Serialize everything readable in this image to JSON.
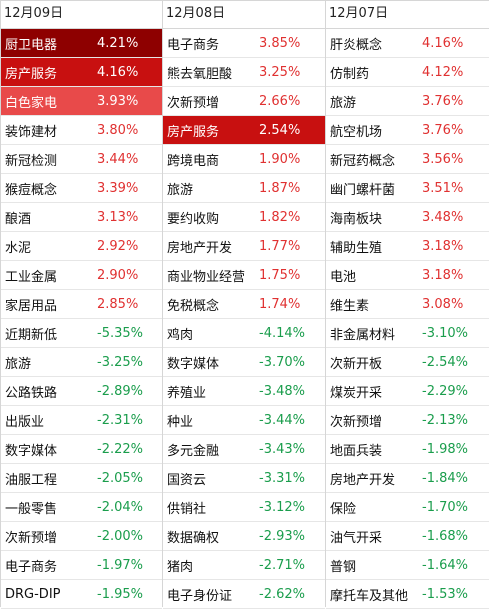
{
  "columns": [
    {
      "date": "12月09日",
      "rows": [
        {
          "name": "厨卫电器",
          "pct": "4.21%",
          "dir": "up",
          "hl": "hl1"
        },
        {
          "name": "房产服务",
          "pct": "4.16%",
          "dir": "up",
          "hl": "hl2"
        },
        {
          "name": "白色家电",
          "pct": "3.93%",
          "dir": "up",
          "hl": "hl3"
        },
        {
          "name": "装饰建材",
          "pct": "3.80%",
          "dir": "up",
          "hl": ""
        },
        {
          "name": "新冠检测",
          "pct": "3.44%",
          "dir": "up",
          "hl": ""
        },
        {
          "name": "猴痘概念",
          "pct": "3.39%",
          "dir": "up",
          "hl": ""
        },
        {
          "name": "酿酒",
          "pct": "3.13%",
          "dir": "up",
          "hl": ""
        },
        {
          "name": "水泥",
          "pct": "2.92%",
          "dir": "up",
          "hl": ""
        },
        {
          "name": "工业金属",
          "pct": "2.90%",
          "dir": "up",
          "hl": ""
        },
        {
          "name": "家居用品",
          "pct": "2.85%",
          "dir": "up",
          "hl": ""
        },
        {
          "name": "近期新低",
          "pct": "-5.35%",
          "dir": "down",
          "hl": ""
        },
        {
          "name": "旅游",
          "pct": "-3.25%",
          "dir": "down",
          "hl": ""
        },
        {
          "name": "公路铁路",
          "pct": "-2.89%",
          "dir": "down",
          "hl": ""
        },
        {
          "name": "出版业",
          "pct": "-2.31%",
          "dir": "down",
          "hl": ""
        },
        {
          "name": "数字媒体",
          "pct": "-2.22%",
          "dir": "down",
          "hl": ""
        },
        {
          "name": "油服工程",
          "pct": "-2.05%",
          "dir": "down",
          "hl": ""
        },
        {
          "name": "一般零售",
          "pct": "-2.04%",
          "dir": "down",
          "hl": ""
        },
        {
          "name": "次新预增",
          "pct": "-2.00%",
          "dir": "down",
          "hl": ""
        },
        {
          "name": "电子商务",
          "pct": "-1.97%",
          "dir": "down",
          "hl": ""
        },
        {
          "name": "DRG-DIP",
          "pct": "-1.95%",
          "dir": "down",
          "hl": ""
        }
      ]
    },
    {
      "date": "12月08日",
      "rows": [
        {
          "name": "电子商务",
          "pct": "3.85%",
          "dir": "up",
          "hl": ""
        },
        {
          "name": "熊去氧胆酸",
          "pct": "3.25%",
          "dir": "up",
          "hl": ""
        },
        {
          "name": "次新预增",
          "pct": "2.66%",
          "dir": "up",
          "hl": ""
        },
        {
          "name": "房产服务",
          "pct": "2.54%",
          "dir": "up",
          "hl": "hl2"
        },
        {
          "name": "跨境电商",
          "pct": "1.90%",
          "dir": "up",
          "hl": ""
        },
        {
          "name": "旅游",
          "pct": "1.87%",
          "dir": "up",
          "hl": ""
        },
        {
          "name": "要约收购",
          "pct": "1.82%",
          "dir": "up",
          "hl": ""
        },
        {
          "name": "房地产开发",
          "pct": "1.77%",
          "dir": "up",
          "hl": ""
        },
        {
          "name": "商业物业经营",
          "pct": "1.75%",
          "dir": "up",
          "hl": ""
        },
        {
          "name": "免税概念",
          "pct": "1.74%",
          "dir": "up",
          "hl": ""
        },
        {
          "name": "鸡肉",
          "pct": "-4.14%",
          "dir": "down",
          "hl": ""
        },
        {
          "name": "数字媒体",
          "pct": "-3.70%",
          "dir": "down",
          "hl": ""
        },
        {
          "name": "养殖业",
          "pct": "-3.48%",
          "dir": "down",
          "hl": ""
        },
        {
          "name": "种业",
          "pct": "-3.44%",
          "dir": "down",
          "hl": ""
        },
        {
          "name": "多元金融",
          "pct": "-3.43%",
          "dir": "down",
          "hl": ""
        },
        {
          "name": "国资云",
          "pct": "-3.31%",
          "dir": "down",
          "hl": ""
        },
        {
          "name": "供销社",
          "pct": "-3.12%",
          "dir": "down",
          "hl": ""
        },
        {
          "name": "数据确权",
          "pct": "-2.93%",
          "dir": "down",
          "hl": ""
        },
        {
          "name": "猪肉",
          "pct": "-2.71%",
          "dir": "down",
          "hl": ""
        },
        {
          "name": "电子身份证",
          "pct": "-2.62%",
          "dir": "down",
          "hl": ""
        }
      ]
    },
    {
      "date": "12月07日",
      "rows": [
        {
          "name": "肝炎概念",
          "pct": "4.16%",
          "dir": "up",
          "hl": ""
        },
        {
          "name": "仿制药",
          "pct": "4.12%",
          "dir": "up",
          "hl": ""
        },
        {
          "name": "旅游",
          "pct": "3.76%",
          "dir": "up",
          "hl": ""
        },
        {
          "name": "航空机场",
          "pct": "3.76%",
          "dir": "up",
          "hl": ""
        },
        {
          "name": "新冠药概念",
          "pct": "3.56%",
          "dir": "up",
          "hl": ""
        },
        {
          "name": "幽门螺杆菌",
          "pct": "3.51%",
          "dir": "up",
          "hl": ""
        },
        {
          "name": "海南板块",
          "pct": "3.48%",
          "dir": "up",
          "hl": ""
        },
        {
          "name": "辅助生殖",
          "pct": "3.18%",
          "dir": "up",
          "hl": ""
        },
        {
          "name": "电池",
          "pct": "3.18%",
          "dir": "up",
          "hl": ""
        },
        {
          "name": "维生素",
          "pct": "3.08%",
          "dir": "up",
          "hl": ""
        },
        {
          "name": "非金属材料",
          "pct": "-3.10%",
          "dir": "down",
          "hl": ""
        },
        {
          "name": "次新开板",
          "pct": "-2.54%",
          "dir": "down",
          "hl": ""
        },
        {
          "name": "煤炭开采",
          "pct": "-2.29%",
          "dir": "down",
          "hl": ""
        },
        {
          "name": "次新预增",
          "pct": "-2.13%",
          "dir": "down",
          "hl": ""
        },
        {
          "name": "地面兵装",
          "pct": "-1.98%",
          "dir": "down",
          "hl": ""
        },
        {
          "name": "房地产开发",
          "pct": "-1.84%",
          "dir": "down",
          "hl": ""
        },
        {
          "name": "保险",
          "pct": "-1.70%",
          "dir": "down",
          "hl": ""
        },
        {
          "name": "油气开采",
          "pct": "-1.68%",
          "dir": "down",
          "hl": ""
        },
        {
          "name": "普钢",
          "pct": "-1.64%",
          "dir": "down",
          "hl": ""
        },
        {
          "name": "摩托车及其他",
          "pct": "-1.53%",
          "dir": "down",
          "hl": ""
        }
      ]
    }
  ]
}
